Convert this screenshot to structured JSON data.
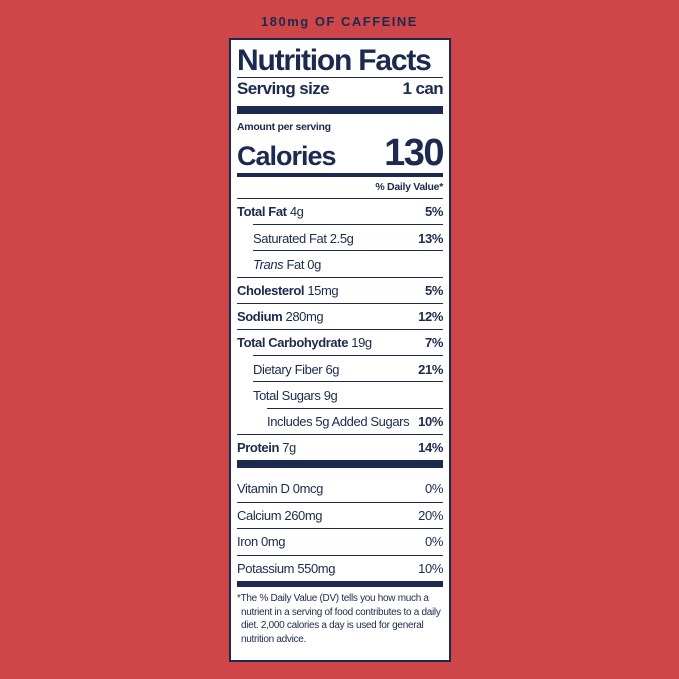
{
  "header_text": "180mg OF CAFFEINE",
  "label": {
    "title": "Nutrition Facts",
    "serving_size_label": "Serving size",
    "serving_size_value": "1 can",
    "amount_per_serving": "Amount per serving",
    "calories_label": "Calories",
    "calories_value": "130",
    "daily_value_header": "% Daily Value*",
    "nutrients": [
      {
        "name": "Total Fat",
        "amount": "4g",
        "dv": "5%"
      },
      {
        "name": "Saturated Fat",
        "amount": "2.5g",
        "dv": "13%"
      },
      {
        "name": "Trans",
        "name_suffix": "Fat",
        "amount": "0g",
        "dv": ""
      },
      {
        "name": "Cholesterol",
        "amount": "15mg",
        "dv": "5%"
      },
      {
        "name": "Sodium",
        "amount": "280mg",
        "dv": "12%"
      },
      {
        "name": "Total Carbohydrate",
        "amount": "19g",
        "dv": "7%"
      },
      {
        "name": "Dietary Fiber",
        "amount": "6g",
        "dv": "21%"
      },
      {
        "name": "Total Sugars",
        "amount": "9g",
        "dv": ""
      },
      {
        "name": "Includes 5g Added Sugars",
        "amount": "",
        "dv": "10%"
      },
      {
        "name": "Protein",
        "amount": "7g",
        "dv": "14%"
      }
    ],
    "vitamins": [
      {
        "name": "Vitamin D",
        "amount": "0mcg",
        "dv": "0%"
      },
      {
        "name": "Calcium",
        "amount": "260mg",
        "dv": "20%"
      },
      {
        "name": "Iron",
        "amount": "0mg",
        "dv": "0%"
      },
      {
        "name": "Potassium",
        "amount": "550mg",
        "dv": "10%"
      }
    ],
    "footnote": "*The % Daily Value (DV) tells you how much a nutrient in a serving of food contributes to a daily diet. 2,000 calories a day is used for general nutrition advice."
  },
  "colors": {
    "background": "#cf4649",
    "ink": "#1b2a4e",
    "panel": "#ffffff"
  }
}
